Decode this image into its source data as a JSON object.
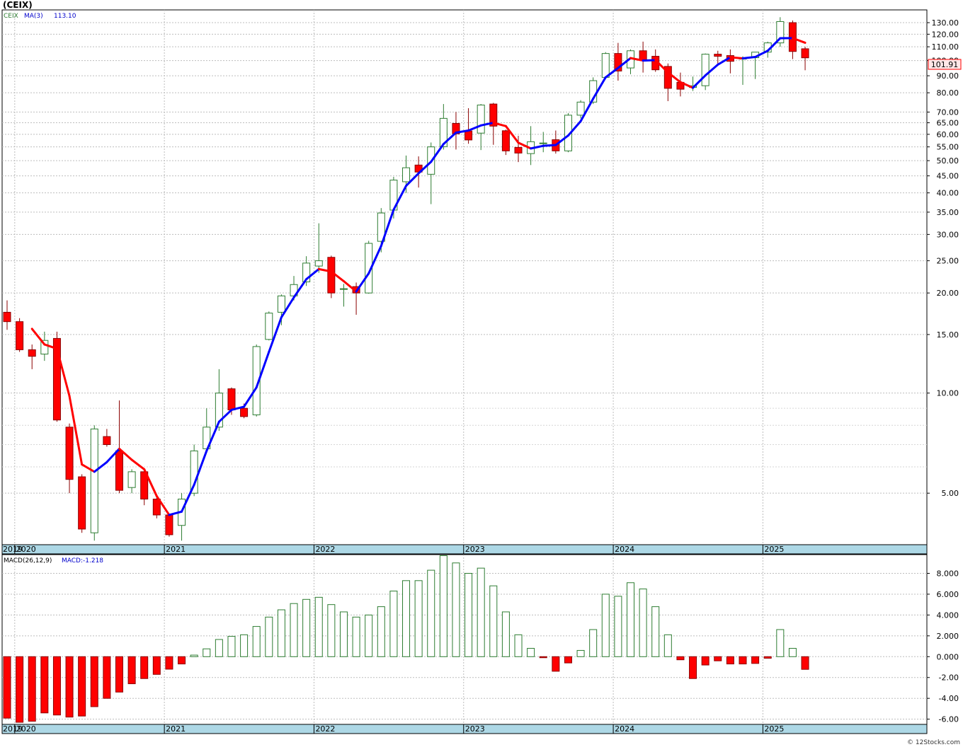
{
  "chart_data": [
    {
      "type": "candlestick",
      "ticker_label": "(CEIX)",
      "legend": {
        "symbol": "CEIX",
        "indicator": "MA(3)",
        "indicator_value": "113.10"
      },
      "last_price_label": "101.91",
      "y_scale": "log",
      "ylim": [
        3.5,
        142
      ],
      "ytick_labels": [
        "5.00",
        "10.00",
        "15.00",
        "20.00",
        "25.00",
        "30.00",
        "35.00",
        "40.00",
        "45.00",
        "50.00",
        "55.00",
        "60.00",
        "65.00",
        "70.00",
        "80.00",
        "90.00",
        "100.00",
        "110.00",
        "120.00",
        "130.00"
      ],
      "ytick_values": [
        5,
        10,
        15,
        20,
        25,
        30,
        35,
        40,
        45,
        50,
        55,
        60,
        65,
        70,
        80,
        90,
        100,
        110,
        120,
        130
      ],
      "x_labels": [
        "2019",
        "2020",
        "2021",
        "2022",
        "2023",
        "2024",
        "2025"
      ],
      "grid": true,
      "colors": {
        "up": "#2e7d32",
        "down": "#ff0000",
        "ma_up": "#0000ff",
        "ma_down": "#ff0000",
        "axis_band": "#add8e6"
      },
      "candles": [
        {
          "o": 17.5,
          "h": 19.0,
          "l": 15.5,
          "c": 16.4
        },
        {
          "o": 16.4,
          "h": 16.8,
          "l": 13.3,
          "c": 13.5
        },
        {
          "o": 13.5,
          "h": 14.0,
          "l": 11.8,
          "c": 12.9
        },
        {
          "o": 13.1,
          "h": 15.3,
          "l": 12.5,
          "c": 14.4
        },
        {
          "o": 14.6,
          "h": 15.3,
          "l": 8.2,
          "c": 8.3
        },
        {
          "o": 7.9,
          "h": 8.1,
          "l": 5.0,
          "c": 5.5
        },
        {
          "o": 5.6,
          "h": 5.7,
          "l": 3.8,
          "c": 3.9
        },
        {
          "o": 3.8,
          "h": 8.0,
          "l": 3.6,
          "c": 7.8
        },
        {
          "o": 7.4,
          "h": 7.8,
          "l": 6.9,
          "c": 7.0
        },
        {
          "o": 6.7,
          "h": 9.5,
          "l": 5.0,
          "c": 5.1
        },
        {
          "o": 5.2,
          "h": 5.9,
          "l": 5.0,
          "c": 5.8
        },
        {
          "o": 5.8,
          "h": 5.9,
          "l": 4.6,
          "c": 4.8
        },
        {
          "o": 4.8,
          "h": 4.9,
          "l": 4.2,
          "c": 4.3
        },
        {
          "o": 4.3,
          "h": 4.3,
          "l": 3.7,
          "c": 3.75
        },
        {
          "o": 4.0,
          "h": 5.0,
          "l": 3.6,
          "c": 4.8
        },
        {
          "o": 5.0,
          "h": 7.0,
          "l": 4.9,
          "c": 6.7
        },
        {
          "o": 6.8,
          "h": 9.0,
          "l": 6.7,
          "c": 7.9
        },
        {
          "o": 7.9,
          "h": 11.8,
          "l": 7.7,
          "c": 10.0
        },
        {
          "o": 10.3,
          "h": 10.4,
          "l": 8.6,
          "c": 8.9
        },
        {
          "o": 9.0,
          "h": 9.3,
          "l": 8.4,
          "c": 8.5
        },
        {
          "o": 8.6,
          "h": 14.0,
          "l": 8.5,
          "c": 13.8
        },
        {
          "o": 14.5,
          "h": 17.6,
          "l": 14.4,
          "c": 17.4
        },
        {
          "o": 17.5,
          "h": 19.8,
          "l": 16.0,
          "c": 19.6
        },
        {
          "o": 19.6,
          "h": 22.5,
          "l": 19.0,
          "c": 21.2
        },
        {
          "o": 21.6,
          "h": 25.8,
          "l": 21.0,
          "c": 24.6
        },
        {
          "o": 24.1,
          "h": 32.4,
          "l": 23.0,
          "c": 25.0
        },
        {
          "o": 25.6,
          "h": 25.9,
          "l": 19.3,
          "c": 20.0
        },
        {
          "o": 20.5,
          "h": 21.3,
          "l": 18.2,
          "c": 20.6
        },
        {
          "o": 20.9,
          "h": 21.5,
          "l": 17.2,
          "c": 20.0
        },
        {
          "o": 20.0,
          "h": 28.7,
          "l": 19.9,
          "c": 28.2
        },
        {
          "o": 28.6,
          "h": 36.0,
          "l": 26.5,
          "c": 34.8
        },
        {
          "o": 35.5,
          "h": 44.7,
          "l": 33.5,
          "c": 43.7
        },
        {
          "o": 43.2,
          "h": 51.8,
          "l": 40.0,
          "c": 47.6
        },
        {
          "o": 48.5,
          "h": 51.5,
          "l": 41.5,
          "c": 46.2
        },
        {
          "o": 45.5,
          "h": 56.7,
          "l": 37.0,
          "c": 55.0
        },
        {
          "o": 55.1,
          "h": 74.0,
          "l": 54.0,
          "c": 67.0
        },
        {
          "o": 64.7,
          "h": 70.0,
          "l": 54.0,
          "c": 60.2
        },
        {
          "o": 61.4,
          "h": 71.9,
          "l": 56.2,
          "c": 57.7
        },
        {
          "o": 60.5,
          "h": 74.0,
          "l": 53.8,
          "c": 73.5
        },
        {
          "o": 74.0,
          "h": 74.6,
          "l": 55.8,
          "c": 63.5
        },
        {
          "o": 61.5,
          "h": 62.0,
          "l": 52.0,
          "c": 53.5
        },
        {
          "o": 54.8,
          "h": 59.4,
          "l": 49.5,
          "c": 52.7
        },
        {
          "o": 52.5,
          "h": 63.5,
          "l": 48.5,
          "c": 57.0
        },
        {
          "o": 56.5,
          "h": 61.0,
          "l": 53.0,
          "c": 56.5
        },
        {
          "o": 57.8,
          "h": 61.6,
          "l": 52.5,
          "c": 53.5
        },
        {
          "o": 53.5,
          "h": 69.5,
          "l": 53.0,
          "c": 68.5
        },
        {
          "o": 68.5,
          "h": 76.0,
          "l": 67.0,
          "c": 75.0
        },
        {
          "o": 75.0,
          "h": 89.0,
          "l": 74.0,
          "c": 87.0
        },
        {
          "o": 89.0,
          "h": 106.0,
          "l": 88.0,
          "c": 105.0
        },
        {
          "o": 105.0,
          "h": 113.0,
          "l": 87.0,
          "c": 93.0
        },
        {
          "o": 95.0,
          "h": 108.0,
          "l": 91.0,
          "c": 107.0
        },
        {
          "o": 107.0,
          "h": 114.0,
          "l": 92.0,
          "c": 100.0
        },
        {
          "o": 103.0,
          "h": 108.0,
          "l": 92.5,
          "c": 93.8
        },
        {
          "o": 96.0,
          "h": 98.0,
          "l": 75.5,
          "c": 82.5
        },
        {
          "o": 86.0,
          "h": 92.0,
          "l": 78.0,
          "c": 82.0
        },
        {
          "o": 83.0,
          "h": 89.5,
          "l": 81.0,
          "c": 84.0
        },
        {
          "o": 84.0,
          "h": 105.0,
          "l": 81.5,
          "c": 104.5
        },
        {
          "o": 104.5,
          "h": 107.0,
          "l": 98.0,
          "c": 103.0
        },
        {
          "o": 103.5,
          "h": 108.0,
          "l": 91.5,
          "c": 99.5
        },
        {
          "o": 101.0,
          "h": 103.0,
          "l": 84.5,
          "c": 102.0
        },
        {
          "o": 102.0,
          "h": 106.0,
          "l": 88.0,
          "c": 106.0
        },
        {
          "o": 106.0,
          "h": 114.0,
          "l": 102.0,
          "c": 113.0
        },
        {
          "o": 113.0,
          "h": 135.0,
          "l": 110.0,
          "c": 131.0
        },
        {
          "o": 130.0,
          "h": 132.0,
          "l": 101.0,
          "c": 106.5
        },
        {
          "o": 108.5,
          "h": 110.0,
          "l": 93.5,
          "c": 101.91
        }
      ],
      "ma": [
        null,
        null,
        15.6,
        14.0,
        13.6,
        9.8,
        6.1,
        5.8,
        6.2,
        6.8,
        6.3,
        5.9,
        4.9,
        4.3,
        4.4,
        5.3,
        6.7,
        8.2,
        8.9,
        9.1,
        10.4,
        13.3,
        16.9,
        19.4,
        22.0,
        23.6,
        23.2,
        21.7,
        20.2,
        22.9,
        27.7,
        35.6,
        42.0,
        45.8,
        49.6,
        56.1,
        60.7,
        61.6,
        63.8,
        65.0,
        63.5,
        56.6,
        54.4,
        55.4,
        55.7,
        59.5,
        65.7,
        76.8,
        89.0,
        95.0,
        101.7,
        100.0,
        100.3,
        92.1,
        86.1,
        82.8,
        90.2,
        97.2,
        102.3,
        101.5,
        102.5,
        107.0,
        116.7,
        116.8,
        113.1
      ],
      "ma_color_segments": "blue where MA rising, red where falling"
    },
    {
      "type": "bar",
      "legend": {
        "indicator": "MACD(26,12,9)",
        "indicator_value": "MACD:-1.218"
      },
      "ylim": [
        -6.5,
        9.8
      ],
      "ytick_labels": [
        "-6.00",
        "-4.00",
        "-2.00",
        "0.000",
        "2.000",
        "4.000",
        "6.000",
        "8.000"
      ],
      "ytick_values": [
        -6,
        -4,
        -2,
        0,
        2,
        4,
        6,
        8
      ],
      "x_labels": [
        "2019",
        "2020",
        "2021",
        "2022",
        "2023",
        "2024",
        "2025"
      ],
      "colors": {
        "positive": "#2e7d32",
        "negative": "#ff0000"
      },
      "values": [
        -5.9,
        -6.3,
        -6.2,
        -5.4,
        -5.6,
        -5.8,
        -5.7,
        -4.8,
        -4.0,
        -3.4,
        -2.6,
        -2.1,
        -1.7,
        -1.2,
        -0.7,
        0.15,
        0.75,
        1.65,
        1.95,
        2.1,
        2.9,
        3.8,
        4.5,
        5.1,
        5.5,
        5.7,
        5.0,
        4.3,
        3.8,
        4.0,
        4.8,
        6.3,
        7.3,
        7.3,
        8.3,
        9.7,
        9.0,
        8.0,
        8.5,
        6.8,
        4.3,
        2.1,
        0.8,
        -0.1,
        -1.4,
        -0.6,
        0.6,
        2.6,
        6.0,
        5.8,
        7.1,
        6.5,
        4.8,
        2.1,
        -0.3,
        -2.1,
        -0.8,
        -0.4,
        -0.7,
        -0.7,
        -0.65,
        -0.15,
        2.6,
        0.8,
        -1.218
      ]
    }
  ],
  "watermark": "© 12Stocks.com"
}
